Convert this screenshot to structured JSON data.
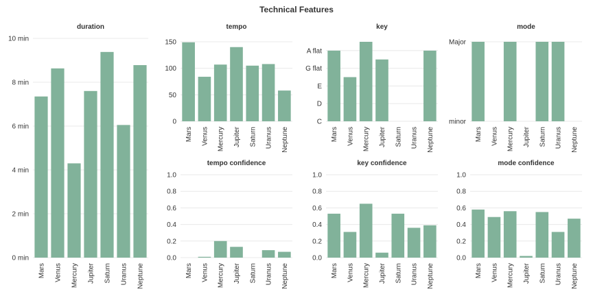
{
  "title": "Technical Features",
  "colors": {
    "bar": "#81b29a",
    "grid": "#e8e8e8",
    "text": "#333333"
  },
  "chart_data": [
    {
      "type": "bar",
      "title": "duration",
      "categories": [
        "Mars",
        "Venus",
        "Mercury",
        "Jupiter",
        "Saturn",
        "Uranus",
        "Neptune"
      ],
      "values": [
        7.35,
        8.63,
        4.3,
        7.6,
        9.38,
        6.05,
        8.78
      ],
      "unit": "min",
      "ylim": [
        0,
        10
      ],
      "yticks": [
        0,
        2,
        4,
        6,
        8,
        10
      ],
      "ytick_labels": [
        "0 min",
        "2 min",
        "4 min",
        "6 min",
        "8 min",
        "10 min"
      ],
      "grid": true
    },
    {
      "type": "bar",
      "title": "tempo",
      "categories": [
        "Mars",
        "Venus",
        "Mercury",
        "Jupiter",
        "Saturn",
        "Uranus",
        "Neptune"
      ],
      "values": [
        149,
        84,
        107,
        140,
        105,
        108,
        58
      ],
      "ylim": [
        0,
        150
      ],
      "yticks": [
        0,
        50,
        100,
        150
      ],
      "ytick_labels": [
        "0",
        "50",
        "100",
        "150"
      ],
      "grid": true
    },
    {
      "type": "bar",
      "title": "key",
      "categories": [
        "Mars",
        "Venus",
        "Mercury",
        "Jupiter",
        "Saturn",
        "Uranus",
        "Neptune"
      ],
      "values": [
        "A flat",
        "F",
        "A",
        "G",
        "C",
        "C",
        "A flat"
      ],
      "values_numeric": [
        8,
        5,
        9,
        7,
        0,
        0,
        8
      ],
      "ylim": [
        0,
        9
      ],
      "yticks": [
        0,
        2,
        4,
        6,
        8
      ],
      "ytick_labels": [
        "C",
        "D",
        "E",
        "G flat",
        "A flat"
      ],
      "grid": true
    },
    {
      "type": "bar",
      "title": "mode",
      "categories": [
        "Mars",
        "Venus",
        "Mercury",
        "Jupiter",
        "Saturn",
        "Uranus",
        "Neptune"
      ],
      "values": [
        "Major",
        "minor",
        "Major",
        "minor",
        "Major",
        "Major",
        "minor"
      ],
      "values_numeric": [
        1,
        0,
        1,
        0,
        1,
        1,
        0
      ],
      "ylim": [
        0,
        1
      ],
      "yticks": [
        0,
        1
      ],
      "ytick_labels": [
        "minor",
        "Major"
      ],
      "grid": true
    },
    {
      "type": "bar",
      "title": "tempo confidence",
      "categories": [
        "Mars",
        "Venus",
        "Mercury",
        "Jupiter",
        "Saturn",
        "Uranus",
        "Neptune"
      ],
      "values": [
        0.0,
        0.01,
        0.2,
        0.13,
        0.0,
        0.09,
        0.07
      ],
      "ylim": [
        0,
        1
      ],
      "yticks": [
        0,
        0.2,
        0.4,
        0.6,
        0.8,
        1.0
      ],
      "ytick_labels": [
        "0.0",
        "0.2",
        "0.4",
        "0.6",
        "0.8",
        "1.0"
      ],
      "grid": true
    },
    {
      "type": "bar",
      "title": "key confidence",
      "categories": [
        "Mars",
        "Venus",
        "Mercury",
        "Jupiter",
        "Saturn",
        "Uranus",
        "Neptune"
      ],
      "values": [
        0.53,
        0.31,
        0.65,
        0.06,
        0.53,
        0.36,
        0.39
      ],
      "ylim": [
        0,
        1
      ],
      "yticks": [
        0,
        0.2,
        0.4,
        0.6,
        0.8,
        1.0
      ],
      "ytick_labels": [
        "0.0",
        "0.2",
        "0.4",
        "0.6",
        "0.8",
        "1.0"
      ],
      "grid": true
    },
    {
      "type": "bar",
      "title": "mode confidence",
      "categories": [
        "Mars",
        "Venus",
        "Mercury",
        "Jupiter",
        "Saturn",
        "Uranus",
        "Neptune"
      ],
      "values": [
        0.58,
        0.49,
        0.56,
        0.02,
        0.55,
        0.31,
        0.47
      ],
      "ylim": [
        0,
        1
      ],
      "yticks": [
        0,
        0.2,
        0.4,
        0.6,
        0.8,
        1.0
      ],
      "ytick_labels": [
        "0.0",
        "0.2",
        "0.4",
        "0.6",
        "0.8",
        "1.0"
      ],
      "grid": true
    }
  ]
}
